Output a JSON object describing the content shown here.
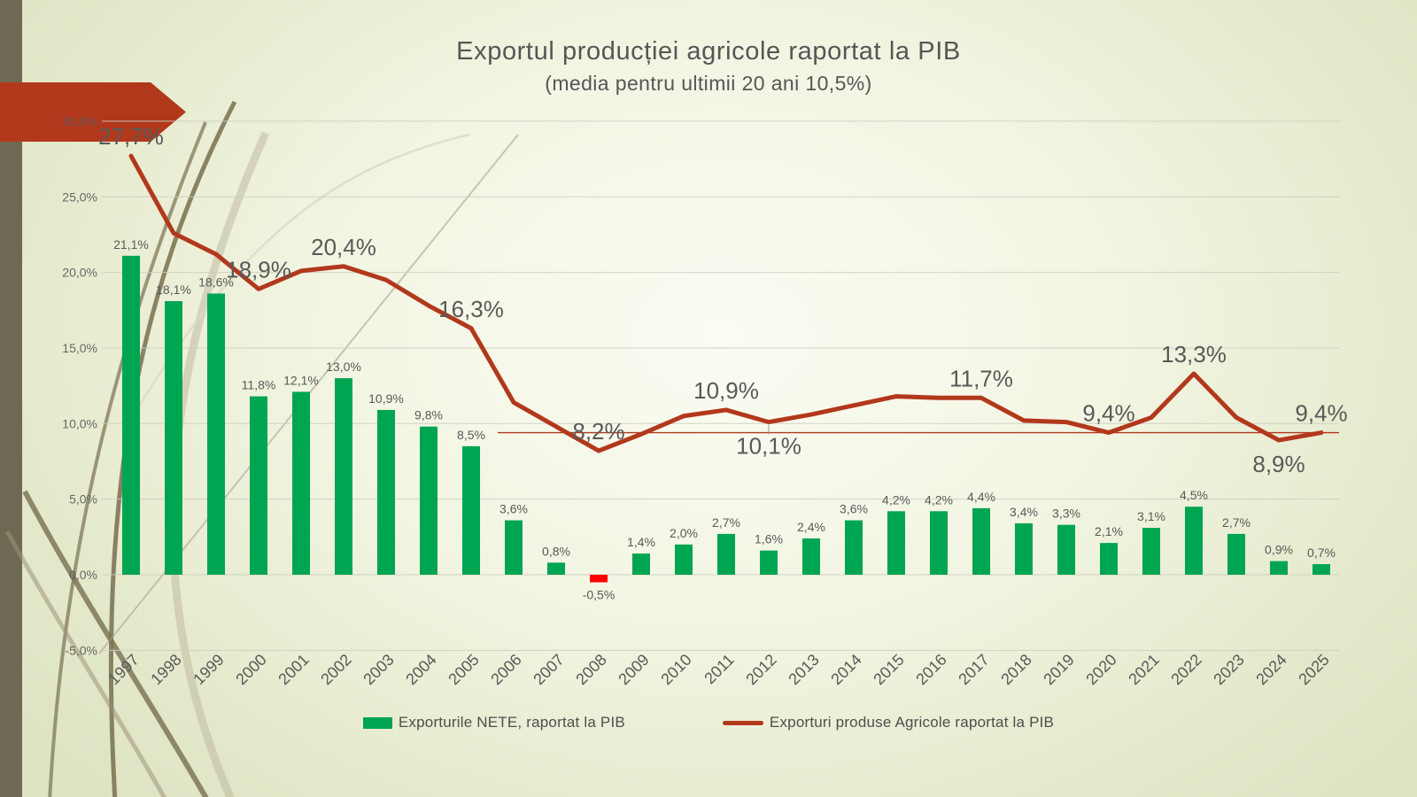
{
  "chart_data": {
    "type": "combo_bar_line",
    "title": "Exportul producției agricole raportat la PIB",
    "subtitle": "(media pentru ultimii 20 ani 10,5%)",
    "categories": [
      "1997",
      "1998",
      "1999",
      "2000",
      "2001",
      "2002",
      "2003",
      "2004",
      "2005",
      "2006",
      "2007",
      "2008",
      "2009",
      "2010",
      "2011",
      "2012",
      "2013",
      "2014",
      "2015",
      "2016",
      "2017",
      "2018",
      "2019",
      "2020",
      "2021",
      "2022",
      "2023",
      "2024",
      "2025"
    ],
    "series": [
      {
        "name": "Exporturile NETE, raportat la PIB",
        "type": "bar",
        "color": "#00A551",
        "negative_color": "#FF0000",
        "values": [
          21.1,
          18.1,
          18.6,
          11.8,
          12.1,
          13.0,
          10.9,
          9.8,
          8.5,
          3.6,
          0.8,
          -0.5,
          1.4,
          2.0,
          2.7,
          1.6,
          2.4,
          3.6,
          4.2,
          4.2,
          4.4,
          3.4,
          3.3,
          2.1,
          3.1,
          4.5,
          2.7,
          0.9,
          0.7
        ],
        "value_labels": [
          "21,1%",
          "18,1%",
          "18,6%",
          "11,8%",
          "12,1%",
          "13,0%",
          "10,9%",
          "9,8%",
          "8,5%",
          "3,6%",
          "0,8%",
          "-0,5%",
          "1,4%",
          "2,0%",
          "2,7%",
          "1,6%",
          "2,4%",
          "3,6%",
          "4,2%",
          "4,2%",
          "4,4%",
          "3,4%",
          "3,3%",
          "2,1%",
          "3,1%",
          "4,5%",
          "2,7%",
          "0,9%",
          "0,7%"
        ]
      },
      {
        "name": "Exporturi produse Agricole raportat la PIB",
        "type": "line",
        "color": "#B2381C",
        "values": [
          27.7,
          22.6,
          21.2,
          18.9,
          20.1,
          20.4,
          19.5,
          17.8,
          16.3,
          11.4,
          9.8,
          8.2,
          9.3,
          10.5,
          10.9,
          10.1,
          10.6,
          11.2,
          11.8,
          11.7,
          11.7,
          10.2,
          10.1,
          9.4,
          10.4,
          13.3,
          10.4,
          8.9,
          9.4
        ],
        "callouts": [
          {
            "year": "1997",
            "text": "27,7%",
            "position": "above"
          },
          {
            "year": "2000",
            "text": "18,9%",
            "position": "above"
          },
          {
            "year": "2002",
            "text": "20,4%",
            "position": "above"
          },
          {
            "year": "2005",
            "text": "16,3%",
            "position": "above"
          },
          {
            "year": "2008",
            "text": "8,2%",
            "position": "above"
          },
          {
            "year": "2011",
            "text": "10,9%",
            "position": "above"
          },
          {
            "year": "2012",
            "text": "10,1%",
            "position": "below",
            "leader": true
          },
          {
            "year": "2017",
            "text": "11,7%",
            "position": "above"
          },
          {
            "year": "2020",
            "text": "9,4%",
            "position": "above"
          },
          {
            "year": "2022",
            "text": "13,3%",
            "position": "above"
          },
          {
            "year": "2024",
            "text": "8,9%",
            "position": "below"
          },
          {
            "year": "2025",
            "text": "9,4%",
            "position": "above"
          }
        ]
      }
    ],
    "y_axis": {
      "min": -5,
      "max": 30,
      "step": 5,
      "tick_labels": [
        "30,0%",
        "25,0%",
        "20,0%",
        "15,0%",
        "10,0%",
        "5,0%",
        "0,0%",
        "-5,0%"
      ]
    },
    "x_axis": {
      "label_rotation": -45
    },
    "reference_line": {
      "value": 9.4,
      "from_category": "2006",
      "color": "#B2381C"
    },
    "grid": true,
    "legend_position": "bottom",
    "colors": {
      "text": "#595959",
      "grid": "#CECEC2",
      "accent_red": "#B2381C",
      "bar_green": "#00A551",
      "negative_red": "#FF0000",
      "band_olive": "#6F6852"
    }
  }
}
